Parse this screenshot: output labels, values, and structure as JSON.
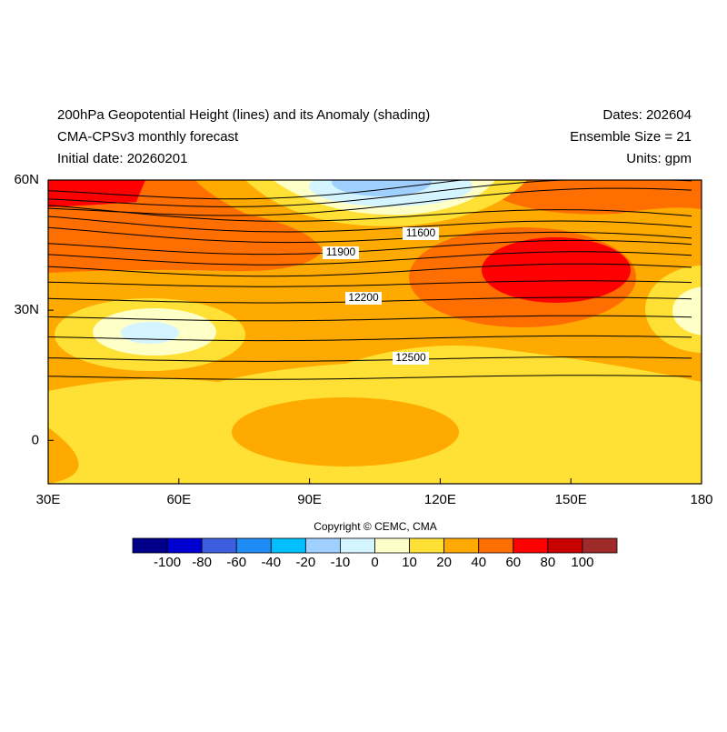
{
  "header": {
    "title": "200hPa Geopotential Height (lines) and its Anomaly (shading)",
    "model": "CMA-CPSv3 monthly forecast",
    "initial_date": "Initial date: 20260201",
    "dates": "Dates: 202604",
    "ensemble": "Ensemble Size = 21",
    "units": "Units: gpm"
  },
  "map": {
    "xlim": [
      30,
      180
    ],
    "ylim": [
      -10,
      60
    ],
    "xticks": [
      {
        "value": 30,
        "label": "30E"
      },
      {
        "value": 60,
        "label": "60E"
      },
      {
        "value": 90,
        "label": "90E"
      },
      {
        "value": 120,
        "label": "120E"
      },
      {
        "value": 150,
        "label": "150E"
      },
      180
    ],
    "yticks": [
      0,
      {
        "value": 30,
        "label": "30N"
      },
      {
        "value": 60,
        "label": "60N"
      }
    ],
    "contour_labels": [
      11600,
      11900,
      12200,
      12500
    ]
  },
  "colorbar": {
    "levels": [
      -100,
      -80,
      -60,
      -40,
      -20,
      -10,
      0,
      10,
      20,
      40,
      60,
      80,
      100
    ],
    "colors": [
      "#00008b",
      "#0000d0",
      "#3b5fe0",
      "#1e8cf5",
      "#00bfff",
      "#a0d0ff",
      "#d4f4ff",
      "#ffffc8",
      "#ffe135",
      "#ffaa00",
      "#ff6e00",
      "#ff0000",
      "#c80000",
      "#9e2a2a"
    ]
  },
  "copyright": "Copyright © CEMC, CMA"
}
